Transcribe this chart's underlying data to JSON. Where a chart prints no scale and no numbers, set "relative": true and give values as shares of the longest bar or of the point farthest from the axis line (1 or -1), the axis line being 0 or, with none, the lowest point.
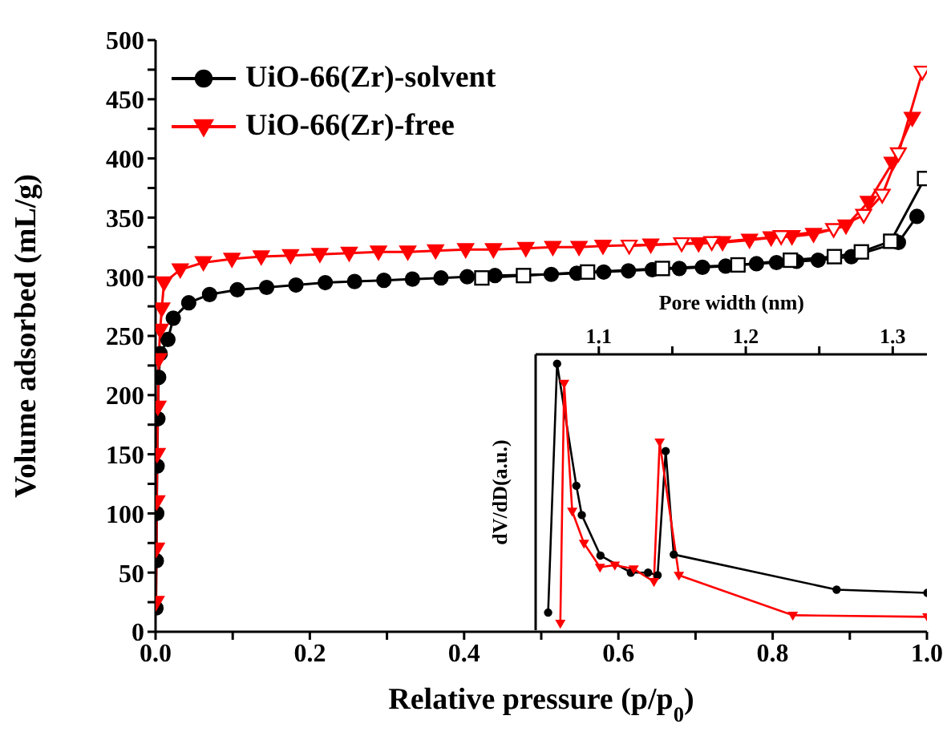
{
  "chart_data": [
    {
      "type": "line",
      "xlabel": "Relative pressure (p/p$_{0}$)",
      "ylabel": "Volume adsorbed (mL/g)",
      "xlim": [
        0,
        1
      ],
      "ylim": [
        0,
        500
      ],
      "xticks": [
        {
          "value": 0,
          "label": "0.0"
        },
        {
          "value": 0.1,
          "label": null
        },
        0.2,
        {
          "value": 0.3,
          "label": null
        },
        0.4,
        {
          "value": 0.5,
          "label": null
        },
        0.6,
        {
          "value": 0.7,
          "label": null
        },
        0.8,
        {
          "value": 0.9,
          "label": null
        },
        {
          "value": 1,
          "label": "1.0"
        }
      ],
      "yticks": [
        0,
        {
          "value": 25,
          "label": null
        },
        50,
        {
          "value": 75,
          "label": null
        },
        100,
        {
          "value": 125,
          "label": null
        },
        150,
        {
          "value": 175,
          "label": null
        },
        200,
        {
          "value": 225,
          "label": null
        },
        250,
        {
          "value": 275,
          "label": null
        },
        300,
        {
          "value": 325,
          "label": null
        },
        350,
        {
          "value": 375,
          "label": null
        },
        400,
        {
          "value": 425,
          "label": null
        },
        450,
        {
          "value": 475,
          "label": null
        },
        500
      ],
      "grid": false,
      "legend": "top left",
      "line_style": "solid",
      "series": [
        {
          "name": "UiO-66(Zr)-solvent",
          "color": "#000000",
          "marker": "circle",
          "x": [
            0.0005,
            0.001,
            0.0015,
            0.002,
            0.003,
            0.004,
            0.006,
            0.016,
            0.023,
            0.043,
            0.07,
            0.106,
            0.144,
            0.182,
            0.22,
            0.258,
            0.296,
            0.333,
            0.37,
            0.404,
            0.44,
            0.513,
            0.546,
            0.581,
            0.613,
            0.644,
            0.679,
            0.709,
            0.739,
            0.779,
            0.805,
            0.831,
            0.859,
            0.902,
            0.963,
            0.987
          ],
          "values": [
            20,
            60,
            100,
            140,
            180,
            215,
            235,
            247,
            265,
            278,
            285,
            289,
            291,
            293,
            295,
            296,
            297,
            298,
            299,
            300,
            301,
            302,
            303,
            304,
            305,
            306,
            307,
            308,
            309,
            311,
            312,
            313,
            314,
            317,
            329,
            351
          ]
        },
        {
          "color": "#000000",
          "marker": "square",
          "x": [
            0.997,
            0.953,
            0.915,
            0.88,
            0.823,
            0.755,
            0.657,
            0.56,
            0.477,
            0.423
          ],
          "values": [
            383,
            330,
            321,
            317,
            314,
            310,
            307,
            304,
            301,
            299
          ]
        },
        {
          "name": "UiO-66(Zr)-free",
          "color": "#ff0000",
          "marker": "triangle",
          "x": [
            0.0005,
            0.001,
            0.0015,
            0.002,
            0.003,
            0.004,
            0.006,
            0.008,
            0.011,
            0.032,
            0.062,
            0.099,
            0.137,
            0.175,
            0.213,
            0.251,
            0.289,
            0.327,
            0.363,
            0.402,
            0.438,
            0.48,
            0.515,
            0.549,
            0.58,
            0.642,
            0.704,
            0.735,
            0.77,
            0.798,
            0.825,
            0.853,
            0.895,
            0.924,
            0.955,
            0.981
          ],
          "values": [
            25,
            70,
            110,
            150,
            190,
            230,
            255,
            273,
            295,
            306,
            312,
            315,
            317,
            318,
            319,
            320,
            321,
            321,
            322,
            323,
            323,
            324,
            325,
            325,
            326,
            327,
            328,
            329,
            331,
            333,
            334,
            336,
            343,
            363,
            396,
            434
          ]
        },
        {
          "color": "#ff0000",
          "marker": "triangle",
          "x": [
            0.994,
            0.963,
            0.942,
            0.918,
            0.879,
            0.811,
            0.721,
            0.682,
            0.614
          ],
          "values": [
            473,
            404,
            369,
            352,
            340,
            334,
            329,
            328,
            326
          ]
        }
      ]
    },
    {
      "type": "line",
      "xlabel": "Pore width (nm)",
      "ylabel": "dV/dD(a.u.)",
      "relative": true,
      "tick_labels": "x",
      "xlim": [
        1.057,
        1.3236
      ],
      "xticks": [
        1.1,
        {
          "value": 1.15,
          "label": null
        },
        1.2,
        {
          "value": 1.25,
          "label": null
        },
        1.3
      ],
      "line_style": "solid",
      "series": [
        {
          "color": "#000000",
          "marker": "circle",
          "x": [
            1.0655,
            1.0716,
            1.0847,
            1.0884,
            1.1011,
            1.1218,
            1.1335,
            1.14,
            1.1455,
            1.151,
            1.2618,
            1.3236
          ],
          "values": [
            0.066,
            1,
            0.542,
            0.432,
            0.28,
            0.216,
            0.216,
            0.206,
            0.672,
            0.284,
            0.152,
            0.14
          ]
        },
        {
          "color": "#ff0000",
          "marker": "triangle",
          "x": [
            1.0738,
            1.0764,
            1.0819,
            1.0899,
            1.1008,
            1.1109,
            1.1237,
            1.1375,
            1.1414,
            1.1545,
            1.232,
            1.3236
          ],
          "values": [
            0.026,
            0.926,
            0.446,
            0.326,
            0.236,
            0.244,
            0.23,
            0.182,
            0.706,
            0.206,
            0.056,
            0.05
          ]
        }
      ]
    }
  ]
}
